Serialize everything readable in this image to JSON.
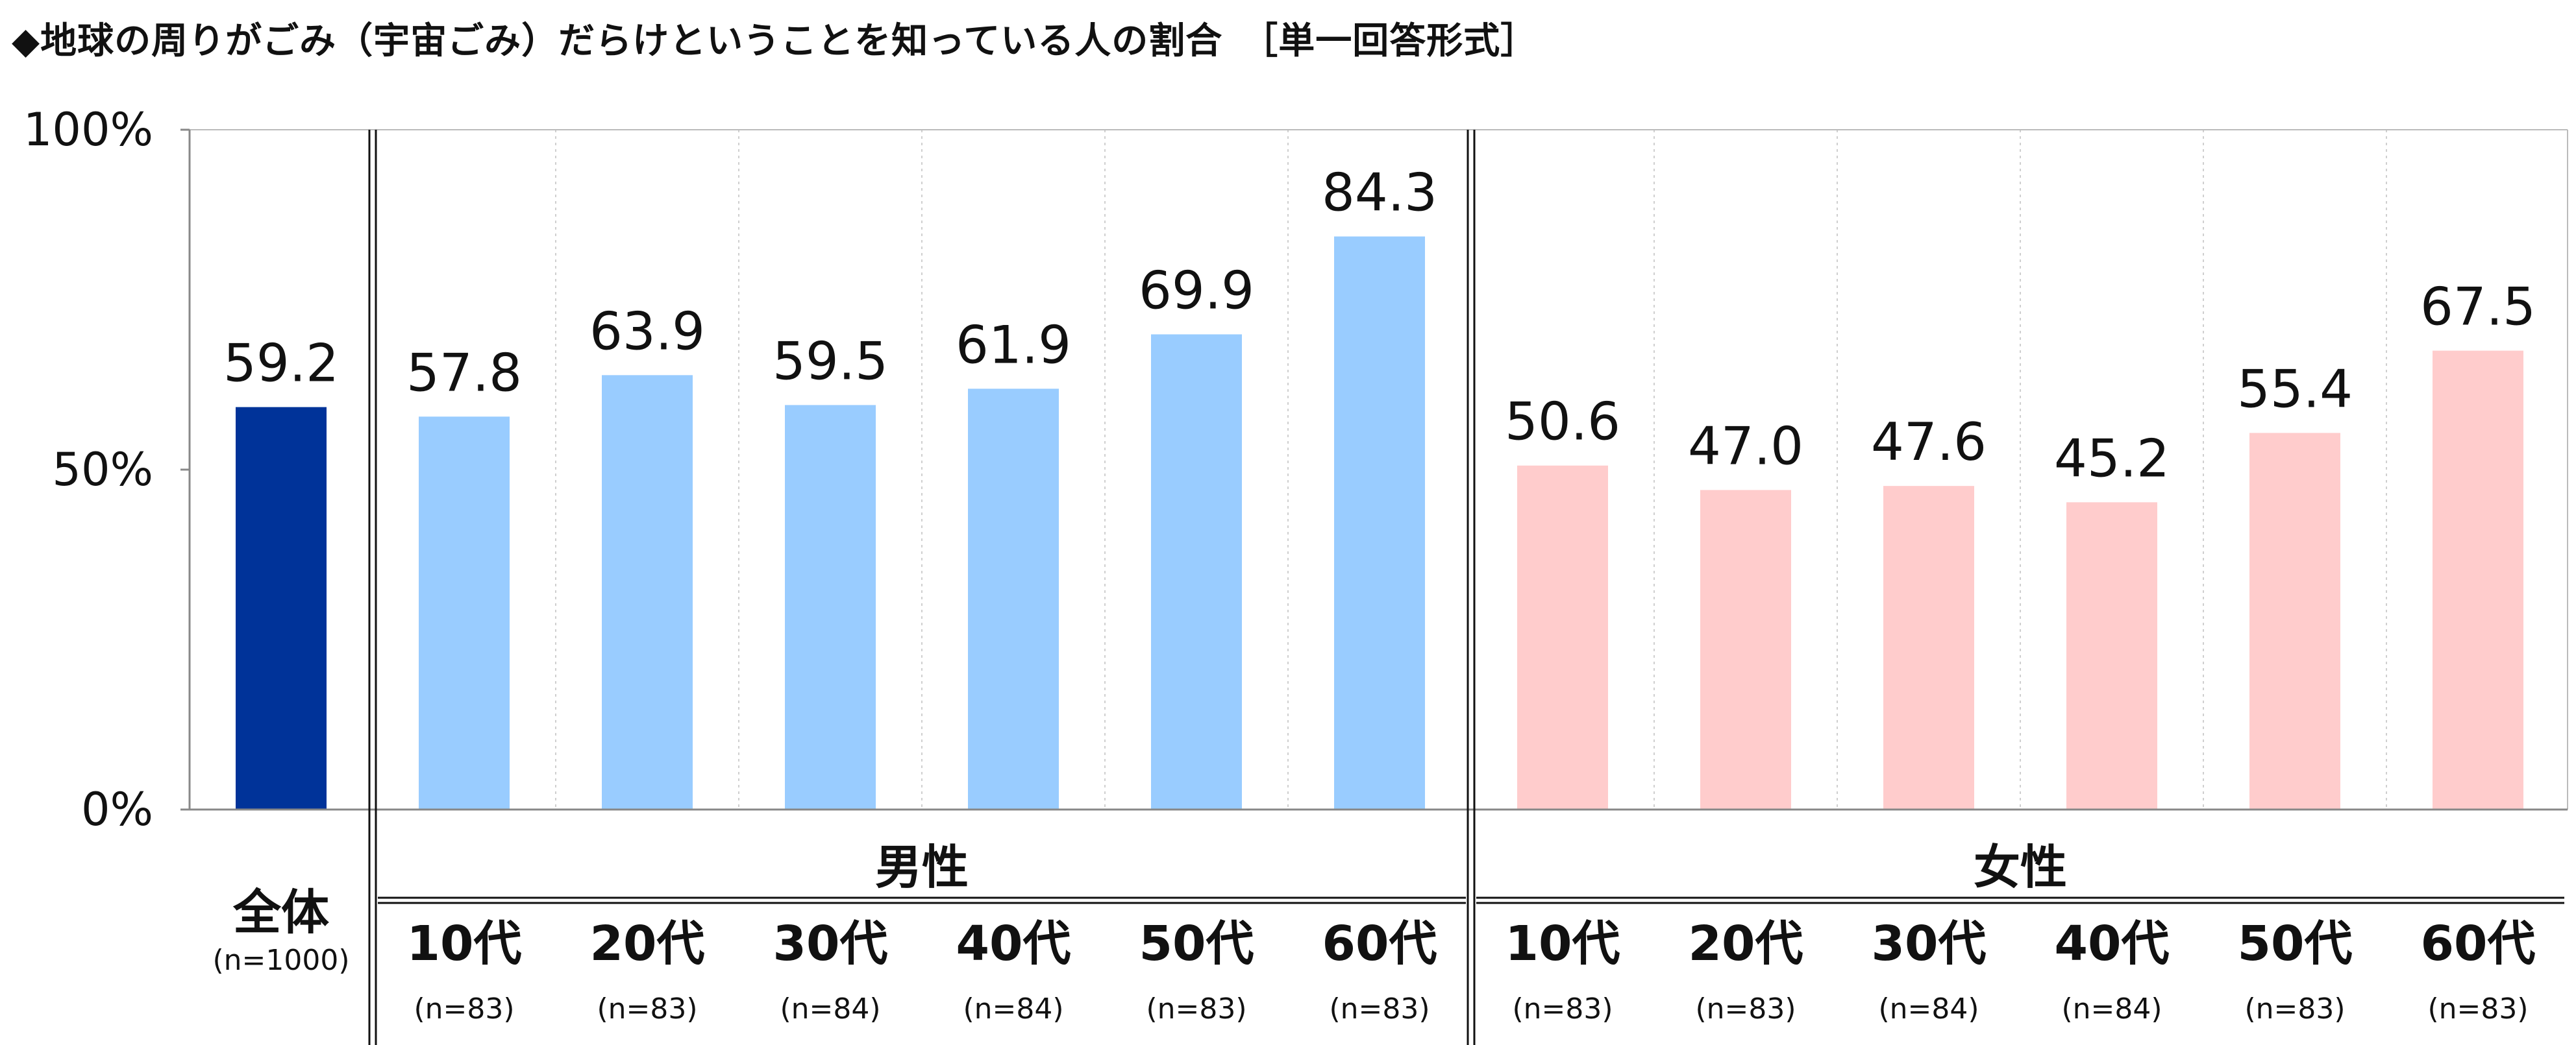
{
  "title": "◆地球の周りがごみ（宇宙ごみ）だらけということを知っている人の割合　［単一回答形式］",
  "colors": {
    "total": "#003399",
    "male": "#99CCFF",
    "female": "#FFCCCC"
  },
  "chart_data": {
    "type": "bar",
    "ylim": [
      0,
      100
    ],
    "yticks": [
      "0%",
      "50%",
      "100%"
    ],
    "grid": "vertical dotted separators",
    "legend": "none",
    "groups": [
      {
        "label": "",
        "bars": [
          {
            "category": "全体",
            "n": "(n=1000)",
            "value": 59.2,
            "label": "59.2",
            "color": "total"
          }
        ]
      },
      {
        "label": "男性",
        "bars": [
          {
            "category": "10代",
            "n": "(n=83)",
            "value": 57.8,
            "label": "57.8",
            "color": "male"
          },
          {
            "category": "20代",
            "n": "(n=83)",
            "value": 63.9,
            "label": "63.9",
            "color": "male"
          },
          {
            "category": "30代",
            "n": "(n=84)",
            "value": 59.5,
            "label": "59.5",
            "color": "male"
          },
          {
            "category": "40代",
            "n": "(n=84)",
            "value": 61.9,
            "label": "61.9",
            "color": "male"
          },
          {
            "category": "50代",
            "n": "(n=83)",
            "value": 69.9,
            "label": "69.9",
            "color": "male"
          },
          {
            "category": "60代",
            "n": "(n=83)",
            "value": 84.3,
            "label": "84.3",
            "color": "male"
          }
        ]
      },
      {
        "label": "女性",
        "bars": [
          {
            "category": "10代",
            "n": "(n=83)",
            "value": 50.6,
            "label": "50.6",
            "color": "female"
          },
          {
            "category": "20代",
            "n": "(n=83)",
            "value": 47.0,
            "label": "47.0",
            "color": "female"
          },
          {
            "category": "30代",
            "n": "(n=84)",
            "value": 47.6,
            "label": "47.6",
            "color": "female"
          },
          {
            "category": "40代",
            "n": "(n=84)",
            "value": 45.2,
            "label": "45.2",
            "color": "female"
          },
          {
            "category": "50代",
            "n": "(n=83)",
            "value": 55.4,
            "label": "55.4",
            "color": "female"
          },
          {
            "category": "60代",
            "n": "(n=83)",
            "value": 67.5,
            "label": "67.5",
            "color": "female"
          }
        ]
      }
    ]
  }
}
